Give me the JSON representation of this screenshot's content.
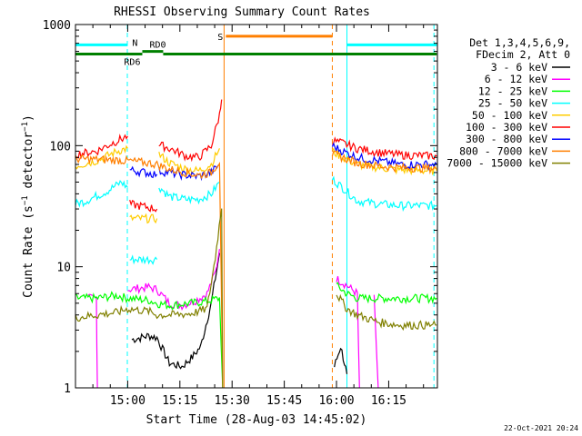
{
  "chart_data": {
    "type": "line",
    "title": "RHESSI Observing Summary Count Rates",
    "xlabel": "Start Time (28-Aug-03 14:45:02)",
    "ylabel_main": "Count Rate (s",
    "ylabel_sup": "−1",
    "ylabel_mid": " detector",
    "ylabel_end": ")",
    "yscale": "log",
    "ylim": [
      1,
      1000
    ],
    "xlim_minutes": [
      14.75,
      16.4833
    ],
    "x_ticks": [
      {
        "label": "15:00",
        "t": 15.0
      },
      {
        "label": "15:15",
        "t": 15.25
      },
      {
        "label": "15:30",
        "t": 15.5
      },
      {
        "label": "15:45",
        "t": 15.75
      },
      {
        "label": "16:00",
        "t": 16.0
      },
      {
        "label": "16:15",
        "t": 16.25
      }
    ],
    "y_ticks": [
      {
        "label": "1",
        "v": 1
      },
      {
        "label": "10",
        "v": 10
      },
      {
        "label": "100",
        "v": 100
      },
      {
        "label": "1000",
        "v": 1000
      }
    ],
    "legend_header": [
      "Det 1,3,4,5,6,9,",
      "FDecim 2, Att 0"
    ],
    "series": [
      {
        "name": "3 - 6 keV",
        "color": "#000000",
        "segments": [
          [
            [
              15.02,
              2.5
            ],
            [
              15.1,
              2.7
            ],
            [
              15.14,
              2.6
            ],
            [
              15.2,
              1.6
            ],
            [
              15.26,
              1.5
            ],
            [
              15.31,
              1.8
            ],
            [
              15.35,
              2.2
            ],
            [
              15.4,
              5
            ],
            [
              15.44,
              13
            ]
          ],
          [
            [
              15.99,
              1.5
            ],
            [
              16.02,
              2.2
            ],
            [
              16.05,
              1.3
            ]
          ]
        ]
      },
      {
        "name": "6 - 12 keV",
        "color": "#ff00ff",
        "segments": [
          [
            [
              14.81,
              5.5
            ],
            [
              14.85,
              5.5
            ],
            [
              14.855,
              1
            ]
          ],
          [
            [
              15.0,
              6.5
            ],
            [
              15.1,
              6.8
            ],
            [
              15.14,
              6.5
            ],
            [
              15.2,
              5.0
            ],
            [
              15.26,
              4.8
            ],
            [
              15.32,
              5.2
            ],
            [
              15.38,
              6
            ],
            [
              15.42,
              9
            ],
            [
              15.44,
              14
            ]
          ],
          [
            [
              16.0,
              8
            ],
            [
              16.05,
              7
            ],
            [
              16.1,
              6
            ],
            [
              16.11,
              1
            ]
          ],
          [
            [
              16.18,
              5.5
            ],
            [
              16.2,
              1
            ]
          ]
        ]
      },
      {
        "name": "12 - 25 keV",
        "color": "#00ff00",
        "segments": [
          [
            [
              14.75,
              5.5
            ],
            [
              14.85,
              5.5
            ],
            [
              14.95,
              5.8
            ],
            [
              15.0,
              5.5
            ],
            [
              15.1,
              5.3
            ],
            [
              15.14,
              5.0
            ],
            [
              15.2,
              4.8
            ],
            [
              15.3,
              5.0
            ],
            [
              15.38,
              5.2
            ],
            [
              15.44,
              5.5
            ],
            [
              15.455,
              1
            ]
          ],
          [
            [
              16.0,
              7
            ],
            [
              16.05,
              6
            ],
            [
              16.1,
              5.5
            ],
            [
              16.3,
              5.5
            ],
            [
              16.48,
              5.5
            ]
          ]
        ]
      },
      {
        "name": "25 - 50 keV",
        "color": "#00ffff",
        "segments": [
          [
            [
              14.75,
              33
            ],
            [
              14.8,
              35
            ],
            [
              14.9,
              42
            ],
            [
              14.97,
              50
            ],
            [
              15.0,
              45
            ]
          ],
          [
            [
              15.01,
              11.5
            ],
            [
              15.14,
              11.5
            ]
          ],
          [
            [
              15.15,
              46
            ],
            [
              15.2,
              38
            ],
            [
              15.28,
              36
            ],
            [
              15.34,
              36
            ],
            [
              15.4,
              40
            ],
            [
              15.44,
              50
            ]
          ],
          [
            [
              15.98,
              53
            ],
            [
              16.03,
              45
            ],
            [
              16.1,
              35
            ],
            [
              16.2,
              33
            ],
            [
              16.3,
              32
            ],
            [
              16.48,
              32
            ]
          ]
        ]
      },
      {
        "name": "50 - 100 keV",
        "color": "#ffcc00",
        "segments": [
          [
            [
              14.75,
              68
            ],
            [
              14.85,
              75
            ],
            [
              14.95,
              90
            ],
            [
              15.0,
              95
            ]
          ],
          [
            [
              15.01,
              25
            ],
            [
              15.14,
              25
            ]
          ],
          [
            [
              15.15,
              85
            ],
            [
              15.2,
              72
            ],
            [
              15.28,
              64
            ],
            [
              15.34,
              62
            ],
            [
              15.4,
              70
            ],
            [
              15.44,
              95
            ]
          ],
          [
            [
              15.98,
              90
            ],
            [
              16.03,
              80
            ],
            [
              16.1,
              70
            ],
            [
              16.2,
              66
            ],
            [
              16.3,
              63
            ],
            [
              16.48,
              62
            ]
          ]
        ]
      },
      {
        "name": "100 - 300 keV",
        "color": "#ff0000",
        "segments": [
          [
            [
              14.75,
              85
            ],
            [
              14.85,
              90
            ],
            [
              14.95,
              110
            ],
            [
              15.0,
              120
            ]
          ],
          [
            [
              15.01,
              33
            ],
            [
              15.14,
              30
            ]
          ],
          [
            [
              15.15,
              102
            ],
            [
              15.2,
              95
            ],
            [
              15.28,
              82
            ],
            [
              15.34,
              80
            ],
            [
              15.4,
              100
            ],
            [
              15.44,
              180
            ],
            [
              15.45,
              240
            ]
          ],
          [
            [
              15.98,
              110
            ],
            [
              16.03,
              105
            ],
            [
              16.1,
              95
            ],
            [
              16.2,
              88
            ],
            [
              16.3,
              84
            ],
            [
              16.48,
              82
            ]
          ]
        ]
      },
      {
        "name": "300 - 800 keV",
        "color": "#0000ff",
        "segments": [
          [
            [
              15.01,
              63
            ],
            [
              15.14,
              58
            ]
          ],
          [
            [
              15.15,
              62
            ],
            [
              15.25,
              58
            ],
            [
              15.34,
              56
            ],
            [
              15.4,
              60
            ],
            [
              15.44,
              70
            ]
          ],
          [
            [
              15.98,
              100
            ],
            [
              16.03,
              90
            ],
            [
              16.1,
              80
            ],
            [
              16.2,
              75
            ],
            [
              16.3,
              70
            ],
            [
              16.48,
              70
            ]
          ]
        ]
      },
      {
        "name": "800 - 7000 keV",
        "color": "#ff7f00",
        "segments": [
          [
            [
              14.75,
              78
            ],
            [
              14.85,
              77
            ],
            [
              14.95,
              76
            ],
            [
              15.0,
              75
            ],
            [
              15.1,
              72
            ],
            [
              15.14,
              70
            ],
            [
              15.2,
              64
            ],
            [
              15.28,
              60
            ],
            [
              15.34,
              57
            ],
            [
              15.4,
              60
            ],
            [
              15.44,
              75
            ],
            [
              15.455,
              1
            ]
          ],
          [
            [
              15.98,
              85
            ],
            [
              16.03,
              80
            ],
            [
              16.1,
              72
            ],
            [
              16.2,
              68
            ],
            [
              16.3,
              66
            ],
            [
              16.48,
              65
            ]
          ]
        ]
      },
      {
        "name": "7000 - 15000 keV",
        "color": "#808000",
        "segments": [
          [
            [
              14.75,
              3.8
            ],
            [
              14.85,
              4.0
            ],
            [
              14.95,
              4.2
            ],
            [
              15.0,
              4.5
            ],
            [
              15.1,
              4.3
            ],
            [
              15.14,
              4.0
            ],
            [
              15.2,
              4.0
            ],
            [
              15.3,
              4.1
            ],
            [
              15.38,
              4.5
            ],
            [
              15.42,
              12
            ],
            [
              15.45,
              32
            ],
            [
              15.455,
              1
            ]
          ],
          [
            [
              16.0,
              6
            ],
            [
              16.05,
              4.5
            ],
            [
              16.1,
              4.0
            ],
            [
              16.2,
              3.5
            ],
            [
              16.3,
              3.3
            ],
            [
              16.48,
              3.3
            ]
          ]
        ]
      }
    ],
    "flags": [
      {
        "label": "N",
        "color": "#00ffff",
        "y": 680,
        "ranges": [
          [
            14.75,
            15.0
          ],
          [
            16.05,
            16.48
          ]
        ]
      },
      {
        "label": "S",
        "color": "#ff7f00",
        "y": 800,
        "ranges": [
          [
            15.47,
            15.98
          ]
        ]
      },
      {
        "label": "RD0",
        "color": "#008000",
        "y": 600,
        "ranges": [
          [
            15.07,
            15.17
          ]
        ]
      },
      {
        "label": "RD6",
        "color": "#008000",
        "y": 570,
        "ranges": [
          [
            14.75,
            15.07
          ],
          [
            15.17,
            16.48
          ]
        ]
      }
    ],
    "vlines": [
      {
        "t": 14.9983,
        "color": "#00ffff",
        "style": "dashed"
      },
      {
        "t": 16.05,
        "color": "#00ffff",
        "style": "solid"
      },
      {
        "t": 16.4667,
        "color": "#00ffff",
        "style": "dashed"
      },
      {
        "t": 15.4617,
        "color": "#ff7f00",
        "style": "solid"
      },
      {
        "t": 15.98,
        "color": "#ff7f00",
        "style": "dashed"
      }
    ],
    "timestamp": "22-Oct-2021 20:24"
  }
}
